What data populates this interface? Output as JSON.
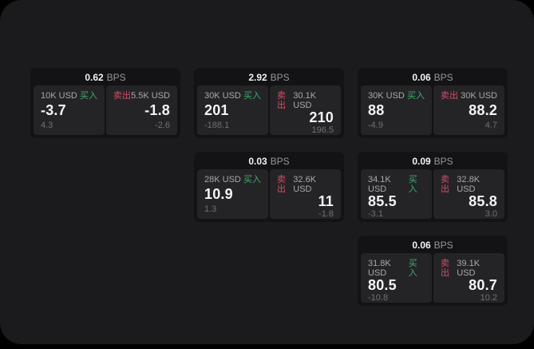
{
  "labels": {
    "bps_unit": "BPS",
    "buy": "买入",
    "sell": "卖出"
  },
  "colors": {
    "outer_bg": "#000000",
    "page_bg": "#1b1b1d",
    "card_bg": "#131315",
    "panel_bg": "#242427",
    "buy_green": "#3fae68",
    "sell_red": "#d05067",
    "value_white": "#f4f4f5",
    "label_gray": "#a9a9ad",
    "sub_gray": "#717175"
  },
  "cards": [
    {
      "bps": "0.62",
      "buy": {
        "amount": "10K USD",
        "value": "-3.7",
        "sub": "4.3"
      },
      "sell": {
        "amount": "5.5K USD",
        "value": "-1.8",
        "sub": "-2.6"
      }
    },
    {
      "bps": "2.92",
      "buy": {
        "amount": "30K USD",
        "value": "201",
        "sub": "-188.1"
      },
      "sell": {
        "amount": "30.1K USD",
        "value": "210",
        "sub": "196.5"
      }
    },
    {
      "bps": "0.06",
      "buy": {
        "amount": "30K USD",
        "value": "88",
        "sub": "-4.9"
      },
      "sell": {
        "amount": "30K USD",
        "value": "88.2",
        "sub": "4.7"
      }
    },
    {
      "bps": "0.03",
      "buy": {
        "amount": "28K USD",
        "value": "10.9",
        "sub": "1.3"
      },
      "sell": {
        "amount": "32.6K USD",
        "value": "11",
        "sub": "-1.8"
      }
    },
    {
      "bps": "0.09",
      "buy": {
        "amount": "34.1K USD",
        "value": "85.5",
        "sub": "-3.1"
      },
      "sell": {
        "amount": "32.8K USD",
        "value": "85.8",
        "sub": "3.0"
      }
    },
    {
      "bps": "0.06",
      "buy": {
        "amount": "31.8K USD",
        "value": "80.5",
        "sub": "-10.8"
      },
      "sell": {
        "amount": "39.1K USD",
        "value": "80.7",
        "sub": "10.2"
      }
    }
  ]
}
